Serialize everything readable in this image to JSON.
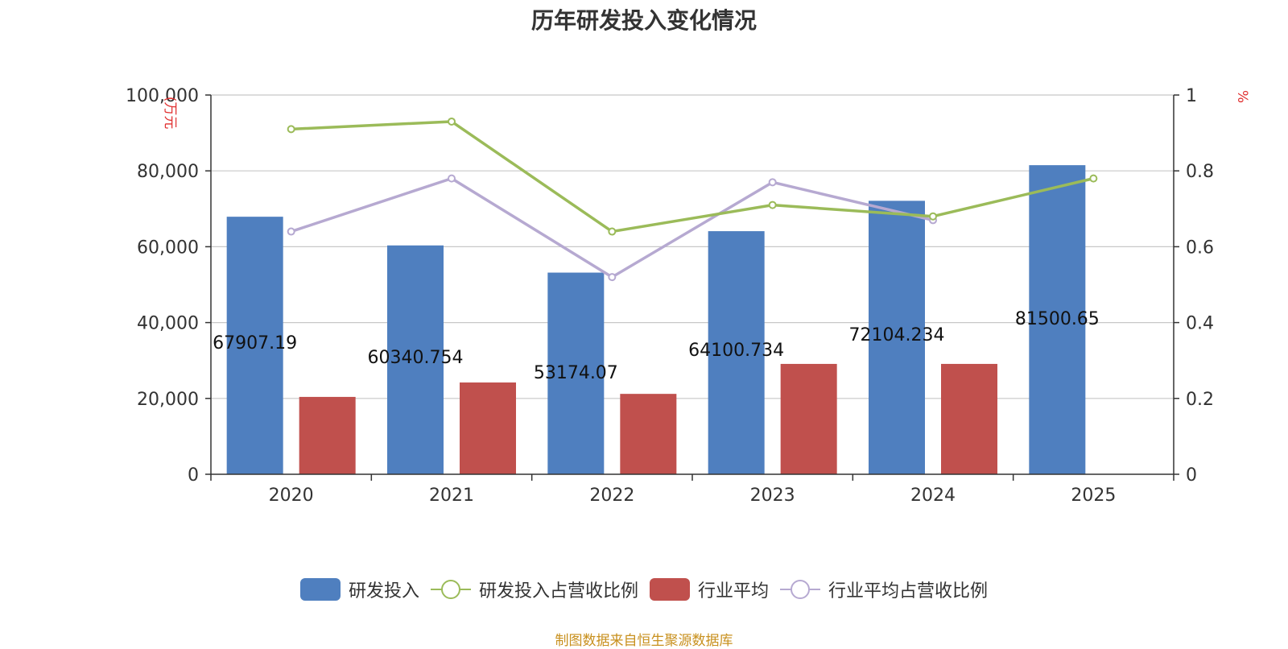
{
  "title": "历年研发投入变化情况",
  "footer": "制图数据来自恒生聚源数据库",
  "colors": {
    "rd_bar": "#4F7FBF",
    "rd_ratio_line": "#9BBB59",
    "industry_bar": "#C0504D",
    "industry_ratio_line": "#B6A9D1",
    "grid": "#C8C8C8",
    "axis": "#333333",
    "unit_label": "#E03030",
    "footer": "#C8901E"
  },
  "chart_data": {
    "type": "bar",
    "title": "历年研发投入变化情况",
    "categories": [
      "2020",
      "2021",
      "2022",
      "2023",
      "2024",
      "2025"
    ],
    "y_left": {
      "label": "(万元",
      "ylim": [
        0,
        100000
      ],
      "ticks": [
        "0",
        "20,000",
        "40,000",
        "60,000",
        "80,000",
        "100,000"
      ],
      "tick_values": [
        0,
        20000,
        40000,
        60000,
        80000,
        100000
      ]
    },
    "y_right": {
      "label": "%",
      "ylim": [
        0,
        1
      ],
      "ticks": [
        "0",
        "0.2",
        "0.4",
        "0.6",
        "0.8",
        "1"
      ],
      "tick_values": [
        0,
        0.2,
        0.4,
        0.6,
        0.8,
        1
      ]
    },
    "grid": true,
    "legend_position": "bottom-center",
    "series": [
      {
        "name": "研发投入",
        "type": "bar",
        "axis": "left",
        "values": [
          67907.19,
          60340.754,
          53174.07,
          64100.734,
          72104.234,
          81500.65
        ],
        "labels": [
          "67907.19",
          "60340.754",
          "53174.07",
          "64100.734",
          "72104.234",
          "81500.65"
        ]
      },
      {
        "name": "研发投入占营收比例",
        "type": "line",
        "axis": "right",
        "values": [
          0.91,
          0.93,
          0.64,
          0.71,
          0.68,
          0.78
        ]
      },
      {
        "name": "行业平均",
        "type": "bar",
        "axis": "left",
        "values": [
          20400,
          24200,
          21200,
          29100,
          29100,
          null
        ]
      },
      {
        "name": "行业平均占营收比例",
        "type": "line",
        "axis": "right",
        "values": [
          0.64,
          0.78,
          0.52,
          0.77,
          0.67,
          null
        ]
      }
    ]
  }
}
